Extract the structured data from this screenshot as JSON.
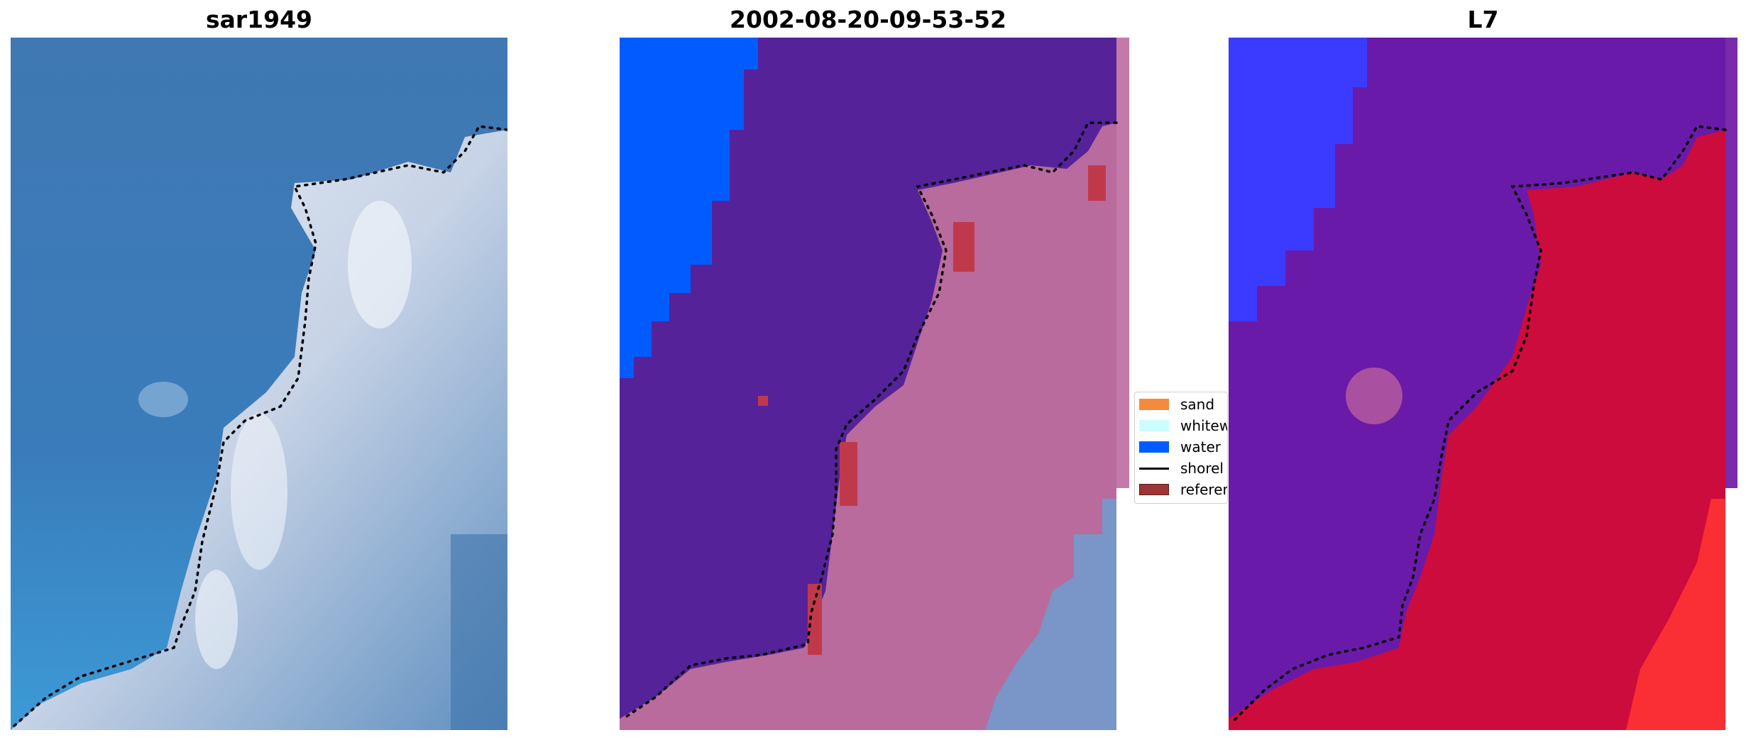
{
  "panels": [
    {
      "title": "sar1949"
    },
    {
      "title": "2002-08-20-09-53-52"
    },
    {
      "title": "L7"
    }
  ],
  "legend": {
    "items": [
      {
        "label": "sand",
        "color": "#f58a3c",
        "kind": "patch"
      },
      {
        "label": "whitew",
        "color": "#ccfdfd",
        "kind": "patch"
      },
      {
        "label": "water",
        "color": "#005cff",
        "kind": "patch"
      },
      {
        "label": "shorel",
        "color": "#000000",
        "kind": "line"
      },
      {
        "label": "referen",
        "color": "#9e3535",
        "kind": "patch"
      }
    ]
  },
  "colors": {
    "ocean_blue": "#3c78b4",
    "foam_white": "#d6e0ee",
    "water_class": "#005cff",
    "land_class_purple": "#55229a",
    "sand_class_pink": "#b86b9c",
    "reference_red": "#c0394a",
    "l7_blue": "#3b3bff",
    "l7_purple": "#6a1aa8",
    "l7_red": "#cc0c3c"
  }
}
